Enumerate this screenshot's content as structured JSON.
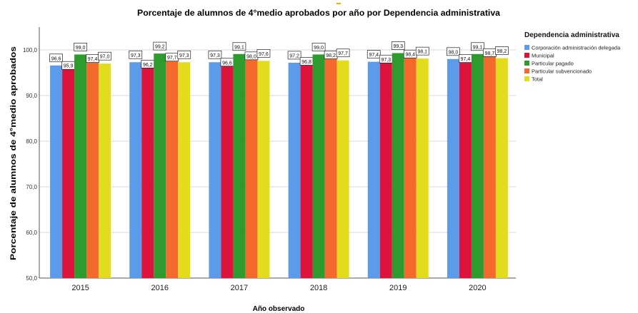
{
  "chart_data": {
    "type": "bar",
    "title": "Porcentaje de alumnos de 4°medio aprobados por año por Dependencia administrativa",
    "xlabel": "Año observado",
    "ylabel": "Porcentaje de alumnos de 4°medio aprobados",
    "categories": [
      "2015",
      "2016",
      "2017",
      "2018",
      "2019",
      "2020"
    ],
    "ylim": [
      50,
      105
    ],
    "yticks": [
      "50,0",
      "60,0",
      "70,0",
      "80,0",
      "90,0",
      "100,0"
    ],
    "grid": true,
    "legend_title": "Dependencia administrativa",
    "legend_position": "right",
    "series": [
      {
        "name": "Corporación administración delegada",
        "color": "#5b9bea",
        "values": [
          96.6,
          97.3,
          97.3,
          97.2,
          97.4,
          98.0
        ],
        "labels": [
          "96,6",
          "97,3",
          "97,3",
          "97,2",
          "97,4",
          "98,0"
        ]
      },
      {
        "name": "Municipal",
        "color": "#dc143c",
        "values": [
          95.9,
          96.2,
          96.6,
          96.8,
          97.3,
          97.4
        ],
        "labels": [
          "95,9",
          "96,2",
          "96,6",
          "96,8",
          "97,3",
          "97,4"
        ]
      },
      {
        "name": "Particular pagado",
        "color": "#2e9b2e",
        "values": [
          99.0,
          99.2,
          99.1,
          99.0,
          99.3,
          99.1
        ],
        "labels": [
          "99,0",
          "99,2",
          "99,1",
          "99,0",
          "99,3",
          "99,1"
        ]
      },
      {
        "name": "Particular subvencionado",
        "color": "#f36a2c",
        "values": [
          97.4,
          97.7,
          98.0,
          98.2,
          98.4,
          98.7
        ],
        "labels": [
          "97,4",
          "97,7",
          "98,0",
          "98,2",
          "98,4",
          "98,7"
        ]
      },
      {
        "name": "Total",
        "color": "#e3dc1c",
        "values": [
          97.0,
          97.3,
          97.6,
          97.7,
          98.1,
          98.2
        ],
        "labels": [
          "97,0",
          "97,3",
          "97,6",
          "97,7",
          "98,1",
          "98,2"
        ]
      }
    ]
  }
}
